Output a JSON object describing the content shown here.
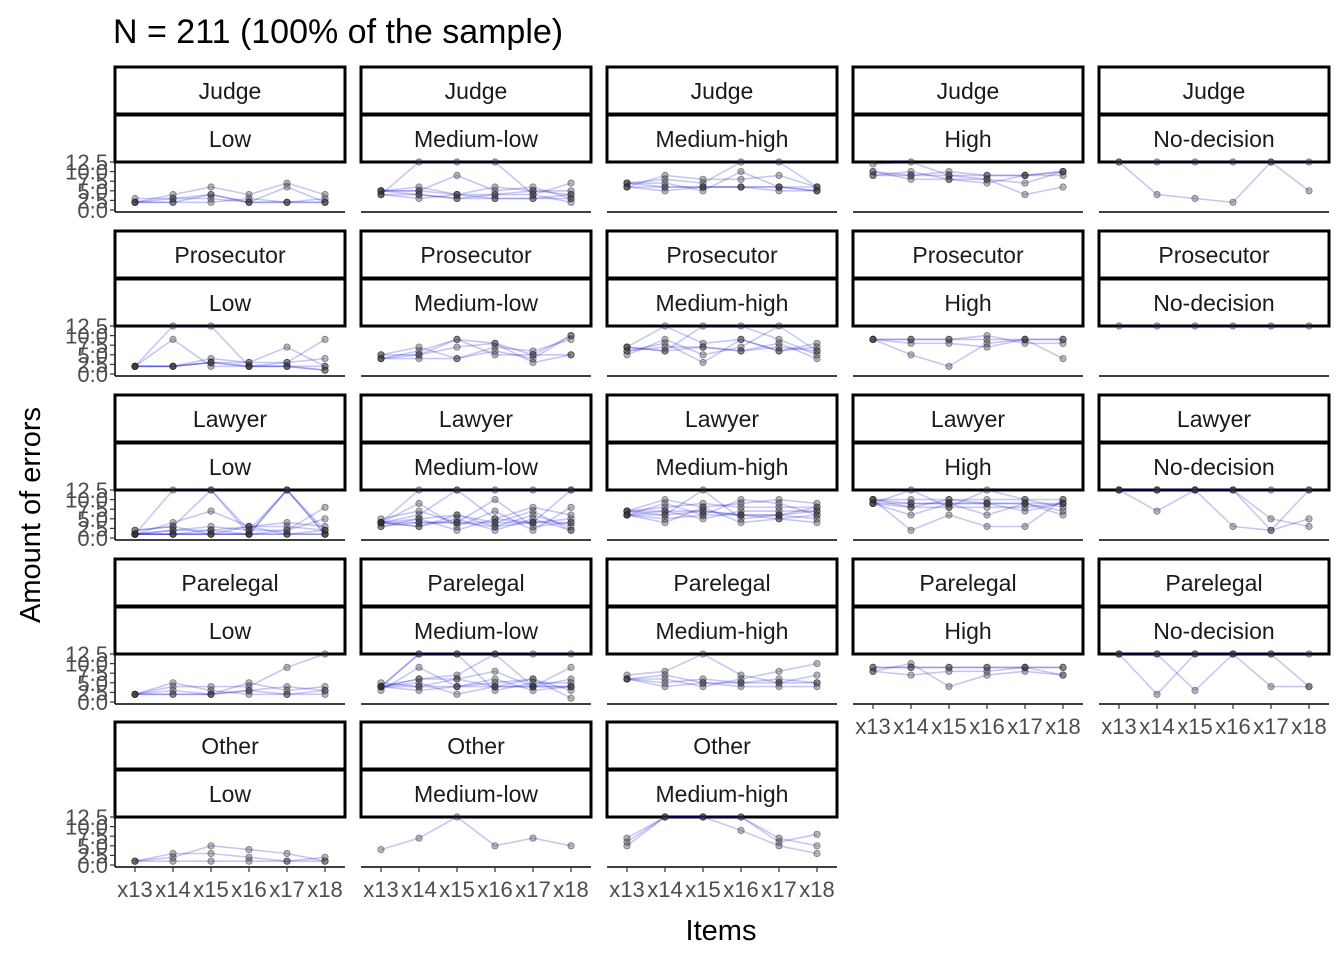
{
  "chart_data": {
    "type": "line",
    "title": "N = 211 (100% of the sample)",
    "xlabel": "Items",
    "ylabel": "Amount of errors",
    "x": [
      "x13",
      "x14",
      "x15",
      "x16",
      "x17",
      "x18"
    ],
    "y_ticks": [
      "0.0",
      "2.5",
      "5.0",
      "7.5",
      "10.0",
      "12.5"
    ],
    "ylim": [
      0,
      12.5
    ],
    "grid": false,
    "line_color": "#0000cc",
    "point_color": "#333333",
    "facet_rows": [
      "Judge",
      "Prosecutor",
      "Lawyer",
      "Parelegal",
      "Other"
    ],
    "facet_cols": [
      "Low",
      "Medium-low",
      "Medium-high",
      "High",
      "No-decision"
    ],
    "panels": [
      {
        "role": "Judge",
        "level": "Low",
        "series": [
          [
            2,
            3,
            3,
            2,
            2,
            2
          ],
          [
            2,
            2,
            2,
            3,
            2,
            3
          ],
          [
            2,
            4,
            6,
            4,
            7,
            4
          ],
          [
            3,
            3,
            4,
            2,
            6,
            2
          ],
          [
            2,
            2,
            4,
            2,
            2,
            2
          ]
        ]
      },
      {
        "role": "Judge",
        "level": "Medium-low",
        "series": [
          [
            5,
            4,
            3,
            3,
            3,
            4
          ],
          [
            4,
            12.5,
            12.5,
            12.5,
            4,
            7
          ],
          [
            5,
            5,
            9,
            5,
            6,
            3
          ],
          [
            4,
            3,
            4,
            3,
            3,
            3
          ],
          [
            5,
            6,
            4,
            4,
            5,
            5
          ],
          [
            4,
            4,
            3,
            4,
            4,
            2
          ],
          [
            5,
            5,
            4,
            6,
            5,
            4
          ]
        ]
      },
      {
        "role": "Judge",
        "level": "Medium-high",
        "series": [
          [
            7,
            6,
            6,
            6,
            6,
            5
          ],
          [
            6,
            9,
            8,
            8,
            9,
            6
          ],
          [
            7,
            8,
            7,
            12.5,
            12.5,
            6
          ],
          [
            6,
            6,
            6,
            6,
            6,
            6
          ],
          [
            6,
            5,
            6,
            6,
            5,
            5
          ],
          [
            7,
            7,
            5,
            10,
            6,
            5
          ]
        ]
      },
      {
        "role": "Judge",
        "level": "High",
        "series": [
          [
            10,
            9,
            10,
            9,
            9,
            10
          ],
          [
            12,
            12.5,
            9,
            9,
            9,
            9
          ],
          [
            9,
            9,
            9,
            8,
            7,
            10
          ],
          [
            9,
            10,
            8,
            8,
            4,
            6
          ],
          [
            10,
            8,
            8,
            7,
            9,
            10
          ]
        ]
      },
      {
        "role": "Judge",
        "level": "No-decision",
        "series": [
          [
            12.5,
            12.5,
            12.5,
            12.5,
            12.5,
            12.5
          ],
          [
            12.5,
            4,
            3,
            2,
            12.5,
            5
          ]
        ]
      },
      {
        "role": "Prosecutor",
        "level": "Low",
        "series": [
          [
            2,
            2,
            3,
            2,
            2,
            1
          ],
          [
            2,
            12.5,
            12.5,
            2,
            2,
            2
          ],
          [
            2,
            9,
            2,
            2,
            3,
            4
          ],
          [
            2,
            2,
            3,
            3,
            7,
            2
          ],
          [
            2,
            2,
            4,
            3,
            3,
            9
          ],
          [
            2,
            2,
            3,
            2,
            2,
            1
          ]
        ]
      },
      {
        "role": "Prosecutor",
        "level": "Medium-low",
        "series": [
          [
            4,
            6,
            9,
            5,
            5,
            10
          ],
          [
            5,
            7,
            4,
            7,
            6,
            9
          ],
          [
            4,
            5,
            9,
            8,
            3,
            5
          ],
          [
            4,
            4,
            4,
            6,
            4,
            10
          ],
          [
            5,
            5,
            7,
            8,
            5,
            5
          ]
        ]
      },
      {
        "role": "Prosecutor",
        "level": "Medium-high",
        "series": [
          [
            6,
            7,
            7,
            6,
            7,
            6
          ],
          [
            7,
            12.5,
            8,
            9,
            6,
            8
          ],
          [
            7,
            6,
            12.5,
            12.5,
            9,
            5
          ],
          [
            6,
            8,
            3,
            9,
            6,
            7
          ],
          [
            7,
            6,
            7,
            6,
            8,
            4
          ],
          [
            5,
            9,
            5,
            7,
            12.5,
            6
          ]
        ]
      },
      {
        "role": "Prosecutor",
        "level": "High",
        "series": [
          [
            9,
            9,
            9,
            10,
            8,
            8
          ],
          [
            9,
            9,
            9,
            9,
            9,
            9
          ],
          [
            9,
            5,
            2,
            8,
            9,
            4
          ],
          [
            9,
            8,
            8,
            7,
            9,
            9
          ]
        ]
      },
      {
        "role": "Prosecutor",
        "level": "No-decision",
        "series": [
          [
            12.5,
            12.5,
            12.5,
            12.5,
            12.5,
            12.5
          ]
        ]
      },
      {
        "role": "Lawyer",
        "level": "Low",
        "series": [
          [
            1,
            12.5,
            12.5,
            1,
            12.5,
            1
          ],
          [
            1,
            1,
            1,
            1,
            1,
            1
          ],
          [
            1,
            2,
            2,
            3,
            1,
            2
          ],
          [
            2,
            3,
            12.5,
            2,
            12.5,
            2
          ],
          [
            1,
            1,
            1,
            1,
            12.5,
            1
          ],
          [
            1,
            2,
            3,
            2,
            2,
            5
          ],
          [
            1,
            1,
            1,
            1,
            1,
            1
          ],
          [
            1,
            4,
            7,
            3,
            4,
            3
          ],
          [
            1,
            1,
            2,
            1,
            2,
            8
          ],
          [
            2,
            3,
            1,
            3,
            3,
            2
          ]
        ]
      },
      {
        "role": "Lawyer",
        "level": "Medium-low",
        "series": [
          [
            4,
            12.5,
            12.5,
            12.5,
            12.5,
            12.5
          ],
          [
            4,
            4,
            4,
            4,
            4,
            4
          ],
          [
            3,
            5,
            6,
            3,
            6,
            3
          ],
          [
            4,
            9,
            3,
            7,
            2,
            8
          ],
          [
            4,
            3,
            5,
            2,
            5,
            2
          ],
          [
            4,
            6,
            12.5,
            5,
            8,
            6
          ],
          [
            3,
            4,
            4,
            10,
            3,
            4
          ],
          [
            4,
            5,
            2,
            5,
            4,
            12.5
          ],
          [
            4,
            3,
            6,
            4,
            7,
            2
          ],
          [
            5,
            7,
            4,
            3,
            4,
            5
          ]
        ]
      },
      {
        "role": "Lawyer",
        "level": "Medium-high",
        "series": [
          [
            6,
            7,
            7,
            6,
            6,
            7
          ],
          [
            7,
            8,
            9,
            8,
            8,
            8
          ],
          [
            6,
            5,
            6,
            6,
            5,
            6
          ],
          [
            7,
            10,
            8,
            9,
            10,
            9
          ],
          [
            6,
            6,
            12.5,
            5,
            6,
            5
          ],
          [
            7,
            7,
            5,
            7,
            7,
            7
          ],
          [
            6,
            9,
            6,
            10,
            9,
            6
          ],
          [
            7,
            6,
            7,
            6,
            6,
            8
          ],
          [
            6,
            4,
            8,
            4,
            5,
            4
          ]
        ]
      },
      {
        "role": "Lawyer",
        "level": "High",
        "series": [
          [
            10,
            9,
            9,
            9,
            9,
            9
          ],
          [
            9,
            8,
            8,
            8,
            8,
            9
          ],
          [
            10,
            10,
            10,
            10,
            10,
            10
          ],
          [
            9,
            6,
            9,
            6,
            9,
            6
          ],
          [
            10,
            2,
            6,
            3,
            3,
            10
          ],
          [
            9,
            9,
            9,
            9,
            9,
            7
          ],
          [
            10,
            8,
            10,
            9,
            7,
            9
          ],
          [
            9,
            12.5,
            8,
            12.5,
            10,
            8
          ]
        ]
      },
      {
        "role": "Lawyer",
        "level": "No-decision",
        "series": [
          [
            12.5,
            12.5,
            12.5,
            12.5,
            12.5,
            12.5
          ],
          [
            12.5,
            7,
            12.5,
            3,
            2,
            5
          ],
          [
            12.5,
            12.5,
            12.5,
            12.5,
            5,
            3
          ],
          [
            12.5,
            12.5,
            12.5,
            12.5,
            2,
            12.5
          ]
        ]
      },
      {
        "role": "Parelegal",
        "level": "Low",
        "series": [
          [
            2,
            5,
            3,
            2,
            2,
            2
          ],
          [
            2,
            2,
            2,
            3,
            4,
            3
          ],
          [
            2,
            4,
            4,
            4,
            9,
            12.5
          ],
          [
            2,
            2,
            2,
            3,
            2,
            3
          ],
          [
            2,
            3,
            2,
            5,
            3,
            4
          ]
        ]
      },
      {
        "role": "Parelegal",
        "level": "Medium-low",
        "series": [
          [
            4,
            12.5,
            12.5,
            12.5,
            12.5,
            12.5
          ],
          [
            4,
            4,
            4,
            4,
            4,
            4
          ],
          [
            4,
            6,
            6,
            8,
            4,
            6
          ],
          [
            3,
            9,
            4,
            5,
            6,
            3
          ],
          [
            4,
            5,
            2,
            4,
            4,
            9
          ],
          [
            4,
            12.5,
            12.5,
            3,
            5,
            5
          ],
          [
            5,
            4,
            6,
            4,
            6,
            1
          ],
          [
            4,
            6,
            7,
            12.5,
            4,
            4
          ],
          [
            4,
            3,
            4,
            6,
            3,
            4
          ]
        ]
      },
      {
        "role": "Parelegal",
        "level": "Medium-high",
        "series": [
          [
            6,
            5,
            6,
            5,
            5,
            5
          ],
          [
            7,
            8,
            12.5,
            7,
            5,
            7
          ],
          [
            6,
            6,
            4,
            6,
            8,
            10
          ],
          [
            6,
            4,
            5,
            4,
            4,
            4
          ],
          [
            6,
            7,
            5,
            5,
            6,
            5
          ]
        ]
      },
      {
        "role": "Parelegal",
        "level": "High",
        "series": [
          [
            9,
            9,
            9,
            9,
            9,
            9
          ],
          [
            8,
            10,
            4,
            7,
            8,
            7
          ],
          [
            9,
            9,
            9,
            9,
            9,
            9
          ],
          [
            8,
            7,
            8,
            8,
            9,
            7
          ]
        ]
      },
      {
        "role": "Parelegal",
        "level": "No-decision",
        "series": [
          [
            12.5,
            12.5,
            12.5,
            12.5,
            12.5,
            4
          ],
          [
            12.5,
            2,
            12.5,
            12.5,
            4,
            4
          ],
          [
            12.5,
            12.5,
            3,
            12.5,
            12.5,
            12.5
          ]
        ]
      },
      {
        "role": "Other",
        "level": "Low",
        "series": [
          [
            1,
            2,
            5,
            4,
            3,
            1
          ],
          [
            1,
            1,
            1,
            1,
            1,
            1
          ],
          [
            1,
            3,
            3,
            2,
            1,
            2
          ]
        ]
      },
      {
        "role": "Other",
        "level": "Medium-low",
        "series": [
          [
            4,
            7,
            12.5,
            5,
            7,
            5
          ]
        ]
      },
      {
        "role": "Other",
        "level": "Medium-high",
        "series": [
          [
            7,
            12.5,
            12.5,
            12.5,
            6,
            8
          ],
          [
            5,
            12.5,
            12.5,
            9,
            5,
            3
          ],
          [
            6,
            12.5,
            12.5,
            12.5,
            7,
            5
          ]
        ]
      }
    ]
  }
}
